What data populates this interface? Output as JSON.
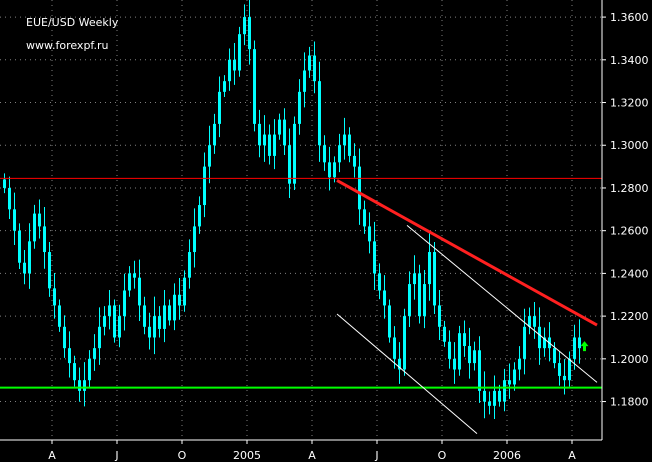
{
  "header": {
    "title": "EUE/USD Weekly",
    "website": "www.forexpf.ru"
  },
  "colors": {
    "background": "#000000",
    "candle": "#00ffff",
    "grid": "#808080",
    "axis": "#ffffff",
    "resistance_line": "#ff0000",
    "downtrend_line": "#ff2020",
    "support_line": "#00ff00",
    "channel_line": "#ffffff",
    "arrow": "#00ff00"
  },
  "chart_data": {
    "type": "candlestick",
    "instrument": "EUE/USD",
    "timeframe": "Weekly",
    "y_axis_side": "right",
    "ylim": [
      1.162,
      1.368
    ],
    "y_ticks": [
      "1.3600",
      "1.3400",
      "1.3200",
      "1.3000",
      "1.2800",
      "1.2600",
      "1.2400",
      "1.2200",
      "1.2000",
      "1.1800"
    ],
    "x_ticks": [
      "A",
      "J",
      "O",
      "2005",
      "A",
      "J",
      "O",
      "2006",
      "A"
    ],
    "x_tick_weeks": [
      10,
      23,
      36,
      49,
      62,
      75,
      88,
      101,
      114
    ],
    "grid": "dotted",
    "x_range_weeks": [
      0,
      120
    ],
    "weekly_closes": [
      1.28,
      1.27,
      1.26,
      1.245,
      1.24,
      1.255,
      1.268,
      1.262,
      1.25,
      1.233,
      1.225,
      1.215,
      1.205,
      1.198,
      1.19,
      1.185,
      1.19,
      1.2,
      1.205,
      1.215,
      1.22,
      1.225,
      1.21,
      1.22,
      1.232,
      1.24,
      1.238,
      1.225,
      1.215,
      1.21,
      1.22,
      1.214,
      1.225,
      1.218,
      1.23,
      1.225,
      1.238,
      1.25,
      1.262,
      1.272,
      1.29,
      1.3,
      1.31,
      1.325,
      1.33,
      1.34,
      1.335,
      1.352,
      1.36,
      1.345,
      1.31,
      1.3,
      1.305,
      1.295,
      1.305,
      1.312,
      1.3,
      1.282,
      1.31,
      1.325,
      1.335,
      1.342,
      1.33,
      1.3,
      1.292,
      1.285,
      1.292,
      1.3,
      1.305,
      1.295,
      1.29,
      1.27,
      1.262,
      1.255,
      1.24,
      1.232,
      1.225,
      1.21,
      1.2,
      1.195,
      1.22,
      1.235,
      1.24,
      1.22,
      1.235,
      1.25,
      1.225,
      1.215,
      1.208,
      1.2,
      1.195,
      1.212,
      1.206,
      1.198,
      1.204,
      1.185,
      1.18,
      1.178,
      1.185,
      1.18,
      1.19,
      1.188,
      1.195,
      1.2,
      1.215,
      1.22,
      1.215,
      1.205,
      1.21,
      1.205,
      1.198,
      1.192,
      1.19,
      1.2,
      1.21,
      1.205
    ],
    "annotations": [
      {
        "name": "resistance-line",
        "type": "horizontal",
        "price": 1.2845
      },
      {
        "name": "support-line",
        "type": "horizontal",
        "price": 1.1865
      },
      {
        "name": "downtrend-line",
        "type": "trend",
        "from": {
          "week": 67,
          "price": 1.2835
        },
        "to": {
          "week": 119,
          "price": 1.2158
        }
      },
      {
        "name": "channel-upper-line",
        "type": "trend",
        "from": {
          "week": 81,
          "price": 1.2625
        },
        "to": {
          "week": 119,
          "price": 1.189
        }
      },
      {
        "name": "channel-lower-line",
        "type": "trend",
        "from": {
          "week": 67,
          "price": 1.221
        },
        "to": {
          "week": 95,
          "price": 1.165
        }
      },
      {
        "name": "up-arrow",
        "type": "arrow",
        "direction": "up",
        "week": 116.5,
        "price": 1.2055
      }
    ]
  }
}
